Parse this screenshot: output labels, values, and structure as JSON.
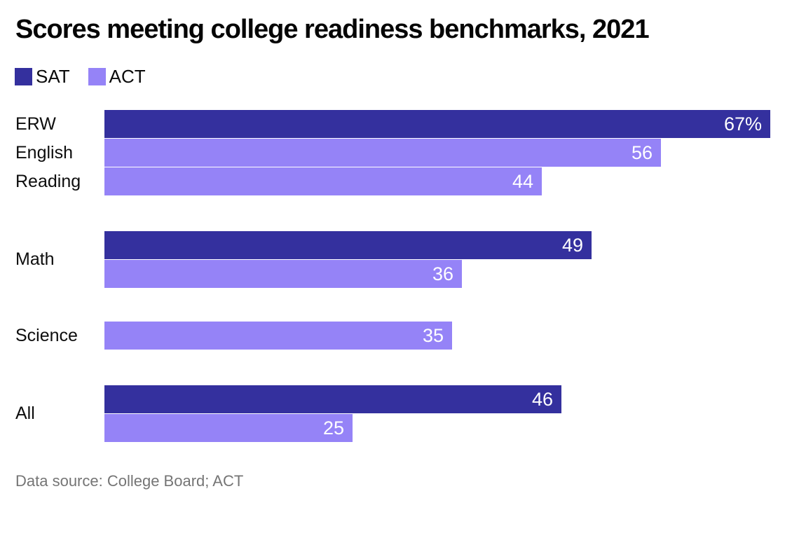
{
  "header": {
    "title": "Scores meeting college readiness benchmarks, 2021"
  },
  "legend": {
    "items": [
      {
        "name": "SAT",
        "color": "#34309e"
      },
      {
        "name": "ACT",
        "color": "#9583f7"
      }
    ]
  },
  "footer": {
    "source": "Data source: College Board; ACT"
  },
  "chart_data": {
    "type": "bar",
    "orientation": "horizontal",
    "title": "Scores meeting college readiness benchmarks, 2021",
    "xlabel": "",
    "ylabel": "",
    "xlim": [
      0,
      67
    ],
    "unit": "percent",
    "grid": false,
    "legend_position": "top-left",
    "categories": [
      "ERW / English / Reading",
      "Math",
      "Science",
      "All"
    ],
    "series": [
      {
        "name": "SAT",
        "color": "#34309e",
        "values": [
          67,
          49,
          null,
          46
        ]
      },
      {
        "name": "ACT (English)",
        "color": "#9583f7",
        "values": [
          56,
          36,
          35,
          25
        ]
      },
      {
        "name": "ACT (Reading)",
        "color": "#9583f7",
        "values": [
          44,
          null,
          null,
          null
        ]
      }
    ],
    "rows": [
      {
        "label": "ERW",
        "series": "SAT",
        "value": 67,
        "value_label": "67%"
      },
      {
        "label": "English",
        "series": "ACT",
        "value": 56,
        "value_label": "56"
      },
      {
        "label": "Reading",
        "series": "ACT",
        "value": 44,
        "value_label": "44"
      },
      {
        "label": "Math",
        "series": "SAT",
        "value": 49,
        "value_label": "49"
      },
      {
        "label": "",
        "series": "ACT",
        "value": 36,
        "value_label": "36"
      },
      {
        "label": "Science",
        "series": "ACT",
        "value": 35,
        "value_label": "35"
      },
      {
        "label": "All",
        "series": "SAT",
        "value": 46,
        "value_label": "46"
      },
      {
        "label": "",
        "series": "ACT",
        "value": 25,
        "value_label": "25"
      }
    ],
    "series_colors": {
      "SAT": "#34309e",
      "ACT": "#9583f7"
    }
  }
}
